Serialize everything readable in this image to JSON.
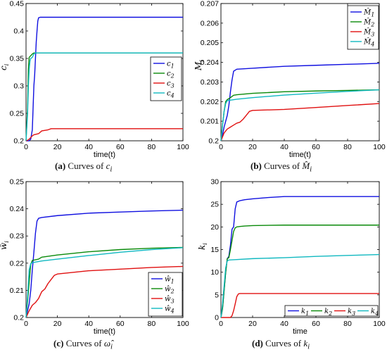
{
  "colors": {
    "blue": "#1010e0",
    "green": "#0a8a0a",
    "red": "#e01010",
    "cyan": "#10b8c0"
  },
  "chart_data": [
    {
      "type": "line",
      "ylabel": "c_i",
      "xlabel": "time(t)",
      "xlim": [
        0,
        100
      ],
      "ylim": [
        0.2,
        0.45
      ],
      "xticks": [
        0,
        20,
        40,
        60,
        80,
        100
      ],
      "yticks": [
        0.2,
        0.25,
        0.3,
        0.35,
        0.4,
        0.45
      ],
      "xtick_labels": [
        "0",
        "20",
        "40",
        "60",
        "80",
        "100"
      ],
      "ytick_labels": [
        "0.2",
        "0.25",
        "0.3",
        "0.35",
        "0.4",
        "0.45"
      ],
      "legend_position": "right-middle",
      "caption": {
        "letter": "(a)",
        "text": "Curves of",
        "symbol": "c",
        "sub": "i"
      },
      "series": [
        {
          "name": "c1",
          "color": "#1010e0",
          "points": [
            [
              0,
              0.2
            ],
            [
              1,
              0.2
            ],
            [
              2,
              0.2
            ],
            [
              3,
              0.203
            ],
            [
              4,
              0.22
            ],
            [
              4.5,
              0.26
            ],
            [
              5,
              0.3
            ],
            [
              5.5,
              0.32
            ],
            [
              6,
              0.35
            ],
            [
              6.5,
              0.38
            ],
            [
              7,
              0.4
            ],
            [
              7.5,
              0.418
            ],
            [
              8,
              0.424
            ],
            [
              9,
              0.425
            ],
            [
              10,
              0.425
            ],
            [
              100,
              0.425
            ]
          ]
        },
        {
          "name": "c2",
          "color": "#0a8a0a",
          "points": [
            [
              0,
              0.2
            ],
            [
              1,
              0.26
            ],
            [
              1.5,
              0.33
            ],
            [
              2,
              0.352
            ],
            [
              3,
              0.355
            ],
            [
              4,
              0.358
            ],
            [
              5,
              0.36
            ],
            [
              10,
              0.36
            ],
            [
              100,
              0.36
            ]
          ]
        },
        {
          "name": "c3",
          "color": "#e01010",
          "points": [
            [
              0,
              0.2
            ],
            [
              1,
              0.201
            ],
            [
              2,
              0.203
            ],
            [
              3,
              0.206
            ],
            [
              4,
              0.209
            ],
            [
              5,
              0.211
            ],
            [
              8,
              0.213
            ],
            [
              10,
              0.218
            ],
            [
              12,
              0.219
            ],
            [
              14,
              0.22
            ],
            [
              16,
              0.222
            ],
            [
              20,
              0.222
            ],
            [
              100,
              0.222
            ]
          ]
        },
        {
          "name": "c4",
          "color": "#10b8c0",
          "points": [
            [
              0,
              0.2
            ],
            [
              1,
              0.25
            ],
            [
              1.5,
              0.3
            ],
            [
              2,
              0.33
            ],
            [
              2.5,
              0.345
            ],
            [
              3,
              0.35
            ],
            [
              4,
              0.352
            ],
            [
              5,
              0.358
            ],
            [
              6,
              0.36
            ],
            [
              10,
              0.36
            ],
            [
              100,
              0.36
            ]
          ]
        }
      ]
    },
    {
      "type": "line",
      "ylabel": "M_i",
      "xlabel": "time(t)",
      "xlim": [
        0,
        100
      ],
      "ylim": [
        0.2,
        0.207
      ],
      "xticks": [
        0,
        20,
        40,
        60,
        80,
        100
      ],
      "yticks": [
        0.2,
        0.201,
        0.202,
        0.203,
        0.204,
        0.205,
        0.206,
        0.207
      ],
      "xtick_labels": [
        "0",
        "20",
        "40",
        "60",
        "80",
        "100"
      ],
      "ytick_labels": [
        "0.2",
        "0.201",
        "0.202",
        "0.203",
        "0.204",
        "0.205",
        "0.206",
        "0.207"
      ],
      "legend_position": "top-right",
      "caption": {
        "letter": "(b)",
        "text": "Curves of",
        "symbol": "M̂",
        "sub": "i"
      },
      "series": [
        {
          "name": "M̂1",
          "color": "#1010e0",
          "points": [
            [
              0,
              0.2
            ],
            [
              1,
              0.2003
            ],
            [
              2,
              0.2007
            ],
            [
              3,
              0.201
            ],
            [
              4,
              0.2013
            ],
            [
              5,
              0.2018
            ],
            [
              6,
              0.2025
            ],
            [
              7,
              0.2031
            ],
            [
              8,
              0.20355
            ],
            [
              10,
              0.20365
            ],
            [
              20,
              0.2037
            ],
            [
              40,
              0.2038
            ],
            [
              60,
              0.20385
            ],
            [
              80,
              0.2039
            ],
            [
              100,
              0.20395
            ]
          ]
        },
        {
          "name": "M̂2",
          "color": "#0a8a0a",
          "points": [
            [
              0,
              0.2
            ],
            [
              1,
              0.2008
            ],
            [
              2,
              0.2015
            ],
            [
              3,
              0.202
            ],
            [
              4,
              0.2021
            ],
            [
              6,
              0.2022
            ],
            [
              8,
              0.20232
            ],
            [
              10,
              0.20235
            ],
            [
              20,
              0.20242
            ],
            [
              40,
              0.2025
            ],
            [
              60,
              0.20254
            ],
            [
              80,
              0.20257
            ],
            [
              100,
              0.2026
            ]
          ]
        },
        {
          "name": "M̂3",
          "color": "#e01010",
          "points": [
            [
              0,
              0.2
            ],
            [
              2,
              0.2004
            ],
            [
              4,
              0.2006
            ],
            [
              6,
              0.2007
            ],
            [
              8,
              0.2008
            ],
            [
              10,
              0.2009
            ],
            [
              12,
              0.20095
            ],
            [
              14,
              0.2011
            ],
            [
              16,
              0.2013
            ],
            [
              18,
              0.2015
            ],
            [
              20,
              0.20155
            ],
            [
              40,
              0.2016
            ],
            [
              60,
              0.2017
            ],
            [
              80,
              0.2018
            ],
            [
              100,
              0.2019
            ]
          ]
        },
        {
          "name": "M̂4",
          "color": "#10b8c0",
          "points": [
            [
              0,
              0.2
            ],
            [
              1,
              0.2008
            ],
            [
              2,
              0.2015
            ],
            [
              3,
              0.2019
            ],
            [
              4,
              0.20205
            ],
            [
              10,
              0.20212
            ],
            [
              20,
              0.2022
            ],
            [
              40,
              0.20233
            ],
            [
              60,
              0.20243
            ],
            [
              80,
              0.20252
            ],
            [
              100,
              0.2026
            ]
          ]
        }
      ]
    },
    {
      "type": "line",
      "ylabel": "ŵ_i",
      "xlabel": "time(t)",
      "xlim": [
        0,
        100
      ],
      "ylim": [
        0.2,
        0.25
      ],
      "xticks": [
        0,
        20,
        40,
        60,
        80,
        100
      ],
      "yticks": [
        0.2,
        0.21,
        0.22,
        0.23,
        0.24,
        0.25
      ],
      "xtick_labels": [
        "0",
        "20",
        "40",
        "60",
        "80",
        "100"
      ],
      "ytick_labels": [
        "0.2",
        "0.21",
        "0.22",
        "0.23",
        "0.24",
        "0.25"
      ],
      "legend_position": "bottom-right",
      "caption": {
        "letter": "(c)",
        "text": "Curves of",
        "symbol": "ω̂",
        "sub": "i"
      },
      "series": [
        {
          "name": "ŵ1",
          "color": "#1010e0",
          "points": [
            [
              0,
              0.2
            ],
            [
              1,
              0.2025
            ],
            [
              2,
              0.205
            ],
            [
              3,
              0.21
            ],
            [
              4,
              0.2175
            ],
            [
              5,
              0.224
            ],
            [
              6,
              0.231
            ],
            [
              7,
              0.2355
            ],
            [
              8,
              0.2365
            ],
            [
              10,
              0.2368
            ],
            [
              20,
              0.2375
            ],
            [
              40,
              0.2384
            ],
            [
              60,
              0.2388
            ],
            [
              80,
              0.2392
            ],
            [
              100,
              0.2395
            ]
          ]
        },
        {
          "name": "ŵ2",
          "color": "#0a8a0a",
          "points": [
            [
              0,
              0.2
            ],
            [
              1,
              0.206
            ],
            [
              2,
              0.213
            ],
            [
              3,
              0.2195
            ],
            [
              4,
              0.221
            ],
            [
              8,
              0.2215
            ],
            [
              10,
              0.2222
            ],
            [
              20,
              0.223
            ],
            [
              40,
              0.2242
            ],
            [
              60,
              0.225
            ],
            [
              80,
              0.2255
            ],
            [
              100,
              0.2258
            ]
          ]
        },
        {
          "name": "ŵ3",
          "color": "#e01010",
          "points": [
            [
              0,
              0.2
            ],
            [
              2,
              0.2025
            ],
            [
              4,
              0.2045
            ],
            [
              6,
              0.2055
            ],
            [
              8,
              0.207
            ],
            [
              10,
              0.2095
            ],
            [
              12,
              0.2105
            ],
            [
              14,
              0.2125
            ],
            [
              16,
              0.214
            ],
            [
              18,
              0.2155
            ],
            [
              20,
              0.216
            ],
            [
              40,
              0.2172
            ],
            [
              60,
              0.2178
            ],
            [
              80,
              0.2184
            ],
            [
              100,
              0.2188
            ]
          ]
        },
        {
          "name": "ŵ4",
          "color": "#10b8c0",
          "points": [
            [
              0,
              0.2
            ],
            [
              1,
              0.208
            ],
            [
              2,
              0.2175
            ],
            [
              3,
              0.2198
            ],
            [
              4,
              0.2202
            ],
            [
              10,
              0.2208
            ],
            [
              20,
              0.2215
            ],
            [
              40,
              0.2228
            ],
            [
              60,
              0.224
            ],
            [
              80,
              0.225
            ],
            [
              100,
              0.2257
            ]
          ]
        }
      ]
    },
    {
      "type": "line",
      "ylabel": "k_i",
      "xlabel": "time",
      "xlim": [
        0,
        100
      ],
      "ylim": [
        0,
        30
      ],
      "xticks": [
        0,
        20,
        40,
        60,
        80,
        100
      ],
      "yticks": [
        0,
        5,
        10,
        15,
        20,
        25,
        30
      ],
      "xtick_labels": [
        "0",
        "20",
        "40",
        "60",
        "80",
        "100"
      ],
      "ytick_labels": [
        "0",
        "5",
        "10",
        "15",
        "20",
        "25",
        "30"
      ],
      "legend_position": "bottom",
      "caption": {
        "letter": "(d)",
        "text": "Curves of",
        "symbol": "k",
        "sub": "i"
      },
      "series": [
        {
          "name": "k1",
          "color": "#1010e0",
          "points": [
            [
              0,
              0
            ],
            [
              1,
              2
            ],
            [
              2,
              6
            ],
            [
              3,
              10
            ],
            [
              4,
              13
            ],
            [
              5,
              13.5
            ],
            [
              6,
              16
            ],
            [
              7,
              19.5
            ],
            [
              8,
              20
            ],
            [
              9,
              24
            ],
            [
              10,
              25.5
            ],
            [
              12,
              25.8
            ],
            [
              15,
              26
            ],
            [
              20,
              26.2
            ],
            [
              30,
              26.5
            ],
            [
              40,
              26.7
            ],
            [
              100,
              26.7
            ]
          ]
        },
        {
          "name": "k2",
          "color": "#0a8a0a",
          "points": [
            [
              0,
              0
            ],
            [
              1,
              2
            ],
            [
              2,
              6
            ],
            [
              3,
              10
            ],
            [
              4,
              13
            ],
            [
              5,
              13.2
            ],
            [
              6,
              15
            ],
            [
              7,
              17
            ],
            [
              8,
              19
            ],
            [
              9,
              19.8
            ],
            [
              10,
              20
            ],
            [
              12,
              20.1
            ],
            [
              15,
              20.2
            ],
            [
              20,
              20.3
            ],
            [
              40,
              20.4
            ],
            [
              100,
              20.4
            ]
          ]
        },
        {
          "name": "k3",
          "color": "#e01010",
          "points": [
            [
              0,
              0
            ],
            [
              4,
              0
            ],
            [
              6,
              0
            ],
            [
              7,
              0.4
            ],
            [
              8,
              1.5
            ],
            [
              9,
              3
            ],
            [
              10,
              4.6
            ],
            [
              11,
              5.2
            ],
            [
              12,
              5.3
            ],
            [
              20,
              5.3
            ],
            [
              100,
              5.3
            ]
          ]
        },
        {
          "name": "k4",
          "color": "#10b8c0",
          "points": [
            [
              0,
              0
            ],
            [
              1,
              3
            ],
            [
              2,
              7
            ],
            [
              3,
              11
            ],
            [
              4,
              12.5
            ],
            [
              5,
              12.7
            ],
            [
              10,
              12.8
            ],
            [
              20,
              13
            ],
            [
              40,
              13.2
            ],
            [
              60,
              13.5
            ],
            [
              80,
              13.7
            ],
            [
              100,
              13.9
            ]
          ]
        }
      ]
    }
  ]
}
